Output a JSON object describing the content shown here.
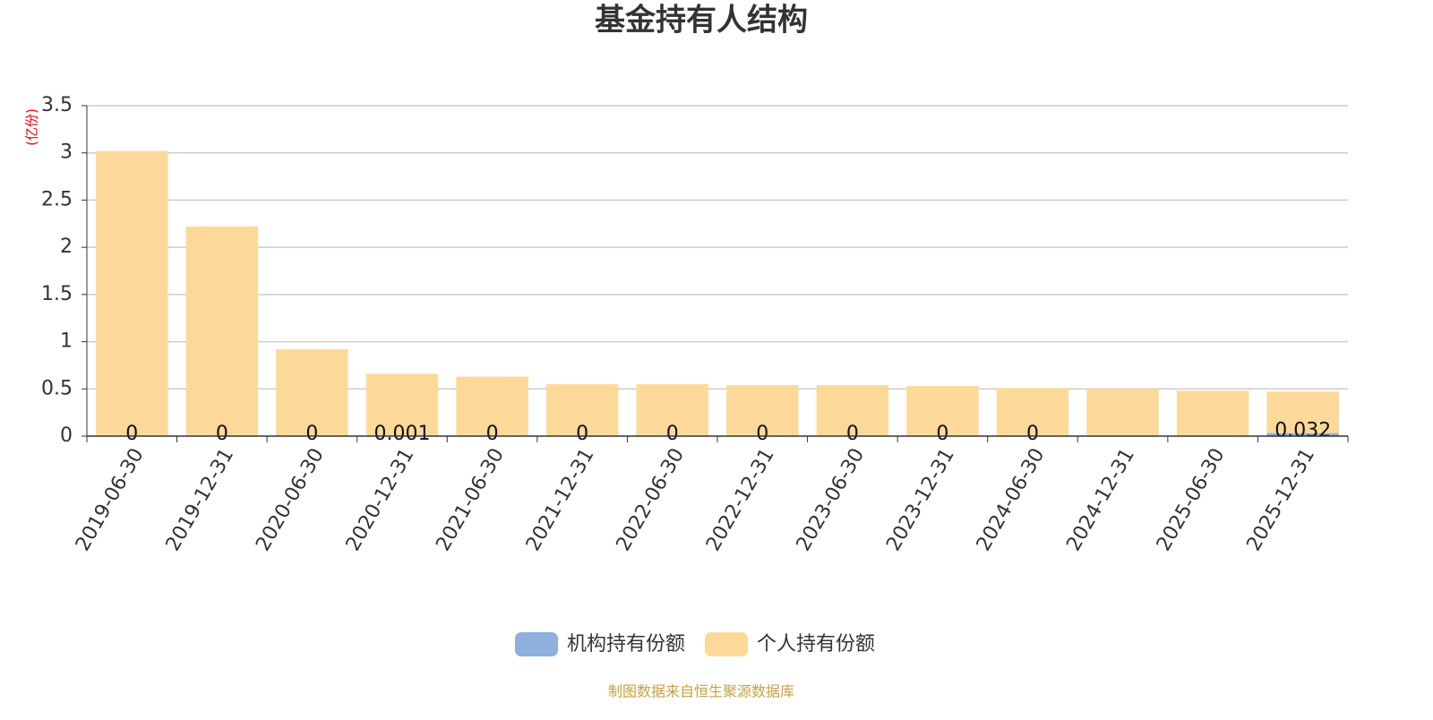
{
  "chart_data": {
    "type": "bar",
    "stacked": true,
    "title": "基金持有人结构",
    "y_unit": "(亿份)",
    "categories": [
      "2019-06-30",
      "2019-12-31",
      "2020-06-30",
      "2020-12-31",
      "2021-06-30",
      "2021-12-31",
      "2022-06-30",
      "2022-12-31",
      "2023-06-30",
      "2023-12-31",
      "2024-06-30",
      "2024-12-31",
      "2025-06-30",
      "2025-12-31"
    ],
    "series": [
      {
        "name": "机构持有份额",
        "color": "#8eaedc",
        "values": [
          0,
          0,
          0,
          0.001,
          0,
          0,
          0,
          0,
          0,
          0,
          0,
          null,
          null,
          0.032
        ],
        "show_labels": true
      },
      {
        "name": "个人持有份额",
        "color": "#fdd999",
        "values": [
          3.02,
          2.22,
          0.92,
          0.66,
          0.63,
          0.55,
          0.55,
          0.54,
          0.54,
          0.53,
          0.51,
          0.5,
          0.48,
          0.44
        ]
      }
    ],
    "ylim": [
      0,
      3.5
    ],
    "yticks": [
      0,
      0.5,
      1,
      1.5,
      2,
      2.5,
      3,
      3.5
    ],
    "grid": true,
    "source": "制图数据来自恒生聚源数据库"
  }
}
